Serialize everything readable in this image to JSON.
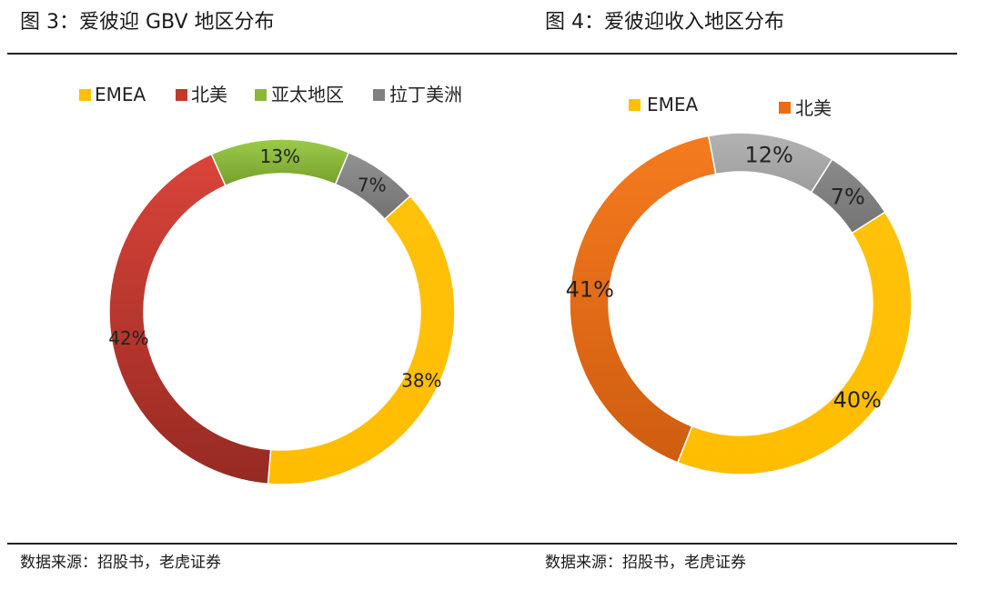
{
  "header": {
    "fig3_title": "图 3：爱彼迎 GBV 地区分布",
    "fig4_title": "图 4：爱彼迎收入地区分布"
  },
  "footer": {
    "fig3_source": "数据来源：招股书，老虎证券",
    "fig4_source": "数据来源：招股书，老虎证券"
  },
  "chart_data": [
    {
      "type": "pie",
      "variant": "donut",
      "title": "图 3：爱彼迎 GBV 地区分布",
      "legend_position": "top",
      "slices": [
        {
          "name": "EMEA",
          "value": 38,
          "label": "38%",
          "color": "#ffc000"
        },
        {
          "name": "北美",
          "value": 42,
          "label": "42%",
          "color": "#c0392b"
        },
        {
          "name": "亚太地区",
          "value": 13,
          "label": "13%",
          "color": "#8ab83a"
        },
        {
          "name": "拉丁美洲",
          "value": 7,
          "label": "7%",
          "color": "#808080"
        }
      ],
      "legend": [
        "EMEA",
        "北美",
        "亚太地区",
        "拉丁美洲"
      ]
    },
    {
      "type": "pie",
      "variant": "donut",
      "title": "图 4：爱彼迎收入地区分布",
      "legend_position": "top",
      "slices": [
        {
          "name": "EMEA",
          "value": 40,
          "label": "40%",
          "color": "#ffc000"
        },
        {
          "name": "北美",
          "value": 41,
          "label": "41%",
          "color": "#ed6c13"
        },
        {
          "name": "",
          "value": 12,
          "label": "12%",
          "color": "#a5a5a5"
        },
        {
          "name": "",
          "value": 7,
          "label": "7%",
          "color": "#7f7f7f"
        }
      ],
      "legend": [
        "EMEA",
        "北美"
      ]
    }
  ]
}
